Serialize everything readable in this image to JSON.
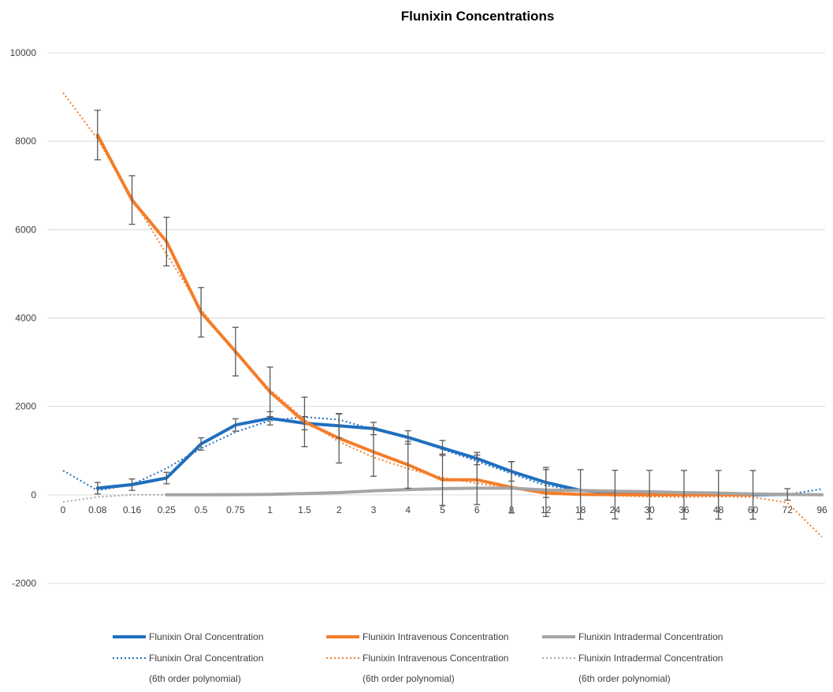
{
  "chart_data": {
    "type": "line",
    "title": "Flunixin Concentrations",
    "xlabel": "",
    "ylabel": "",
    "x_axis": "category",
    "categories": [
      "0",
      "0.08",
      "0.16",
      "0.25",
      "0.5",
      "0.75",
      "1",
      "1.5",
      "2",
      "3",
      "4",
      "5",
      "6",
      "8",
      "12",
      "18",
      "24",
      "30",
      "36",
      "48",
      "60",
      "72",
      "96"
    ],
    "ylim": [
      -2000,
      10000
    ],
    "yticks": [
      -2000,
      0,
      2000,
      4000,
      6000,
      8000,
      10000
    ],
    "ytick_labels": [
      "-2000",
      "0",
      "2000",
      "4000",
      "6000",
      "8000",
      "10000"
    ],
    "grid": "horizontal",
    "legend_position": "bottom",
    "series": [
      {
        "name": "Flunixin Oral Concentration",
        "color": "#1f6fbf",
        "style": "solid",
        "x": [
          "0.08",
          "0.16",
          "0.25",
          "0.5",
          "0.75",
          "1",
          "1.5",
          "2",
          "3",
          "4",
          "5",
          "6",
          "8",
          "12",
          "18",
          "24",
          "30",
          "36",
          "48",
          "60",
          "72"
        ],
        "values": [
          150,
          230,
          380,
          1150,
          1580,
          1730,
          1620,
          1560,
          1500,
          1300,
          1060,
          820,
          530,
          280,
          100,
          50,
          30,
          20,
          10,
          0,
          10
        ],
        "error": [
          130,
          130,
          130,
          140,
          140,
          150,
          150,
          270,
          140,
          150,
          170,
          140,
          220,
          340,
          0,
          0,
          0,
          0,
          0,
          0,
          130
        ]
      },
      {
        "name": "Flunixin Intravenous Concentration",
        "color": "#f47d2a",
        "style": "solid",
        "x": [
          "0.08",
          "0.16",
          "0.25",
          "0.5",
          "0.75",
          "1",
          "1.5",
          "2",
          "3",
          "4",
          "5",
          "6",
          "8",
          "12",
          "18",
          "24",
          "30",
          "36",
          "48",
          "60"
        ],
        "values": [
          8140,
          6670,
          5730,
          4130,
          3240,
          2330,
          1650,
          1280,
          970,
          680,
          340,
          340,
          170,
          40,
          10,
          5,
          3,
          2,
          1,
          0
        ],
        "error": [
          560,
          550,
          550,
          560,
          550,
          560,
          560,
          560,
          550,
          530,
          580,
          560,
          580,
          530,
          560,
          550,
          550,
          550,
          550,
          550
        ]
      },
      {
        "name": "Flunixin Intradermal Concentration",
        "color": "#a5a5a5",
        "style": "solid",
        "x": [
          "0.25",
          "0.5",
          "0.75",
          "1",
          "1.5",
          "2",
          "3",
          "4",
          "5",
          "6",
          "8",
          "12",
          "18",
          "24",
          "30",
          "36",
          "48",
          "60",
          "72",
          "96"
        ],
        "values": [
          0,
          0,
          5,
          10,
          30,
          50,
          90,
          120,
          140,
          150,
          150,
          110,
          100,
          80,
          70,
          50,
          40,
          20,
          10,
          0
        ],
        "error": []
      },
      {
        "name": "Flunixin Oral Concentration",
        "color": "#1f6fbf",
        "style": "dotted",
        "x": [
          "0",
          "0.08",
          "0.16",
          "0.25",
          "0.5",
          "0.75",
          "1",
          "1.5",
          "2",
          "3",
          "4",
          "5",
          "6",
          "8",
          "12",
          "18",
          "24",
          "30",
          "36",
          "48",
          "60",
          "72",
          "96"
        ],
        "values": [
          550,
          100,
          230,
          600,
          1050,
          1420,
          1680,
          1760,
          1700,
          1480,
          1290,
          1030,
          760,
          480,
          210,
          100,
          30,
          0,
          -20,
          -30,
          -10,
          10,
          130
        ]
      },
      {
        "name": "Flunixin Intravenous Concentration",
        "color": "#f47d2a",
        "style": "dotted",
        "x": [
          "0",
          "0.08",
          "0.16",
          "0.25",
          "0.5",
          "0.75",
          "1",
          "1.5",
          "2",
          "3",
          "4",
          "5",
          "6",
          "8",
          "12",
          "18",
          "24",
          "30",
          "36",
          "48",
          "60",
          "72",
          "96"
        ],
        "values": [
          9100,
          8050,
          6730,
          5450,
          4200,
          3200,
          2380,
          1700,
          1200,
          850,
          590,
          390,
          260,
          150,
          70,
          20,
          -20,
          -40,
          -50,
          -40,
          -50,
          -180,
          -950
        ]
      },
      {
        "name": "Flunixin Intradermal Concentration",
        "color": "#a5a5a5",
        "style": "dotted",
        "x": [
          "0",
          "0.08",
          "0.16",
          "0.25"
        ],
        "values": [
          -160,
          -50,
          0,
          0
        ]
      }
    ],
    "legend": [
      {
        "label": "Flunixin Oral Concentration",
        "sublabel": "",
        "color": "#1f6fbf",
        "style": "solid"
      },
      {
        "label": "Flunixin Intravenous Concentration",
        "sublabel": "",
        "color": "#f47d2a",
        "style": "solid"
      },
      {
        "label": "Flunixin Intradermal Concentration",
        "sublabel": "",
        "color": "#a5a5a5",
        "style": "solid"
      },
      {
        "label": "Flunixin Oral Concentration",
        "sublabel": "(6th order polynomial)",
        "color": "#1f6fbf",
        "style": "dotted"
      },
      {
        "label": "Flunixin Intravenous Concentration",
        "sublabel": "(6th order polynomial)",
        "color": "#f47d2a",
        "style": "dotted"
      },
      {
        "label": "Flunixin Intradermal Concentration",
        "sublabel": "(6th order polynomial)",
        "color": "#a5a5a5",
        "style": "dotted"
      }
    ]
  }
}
